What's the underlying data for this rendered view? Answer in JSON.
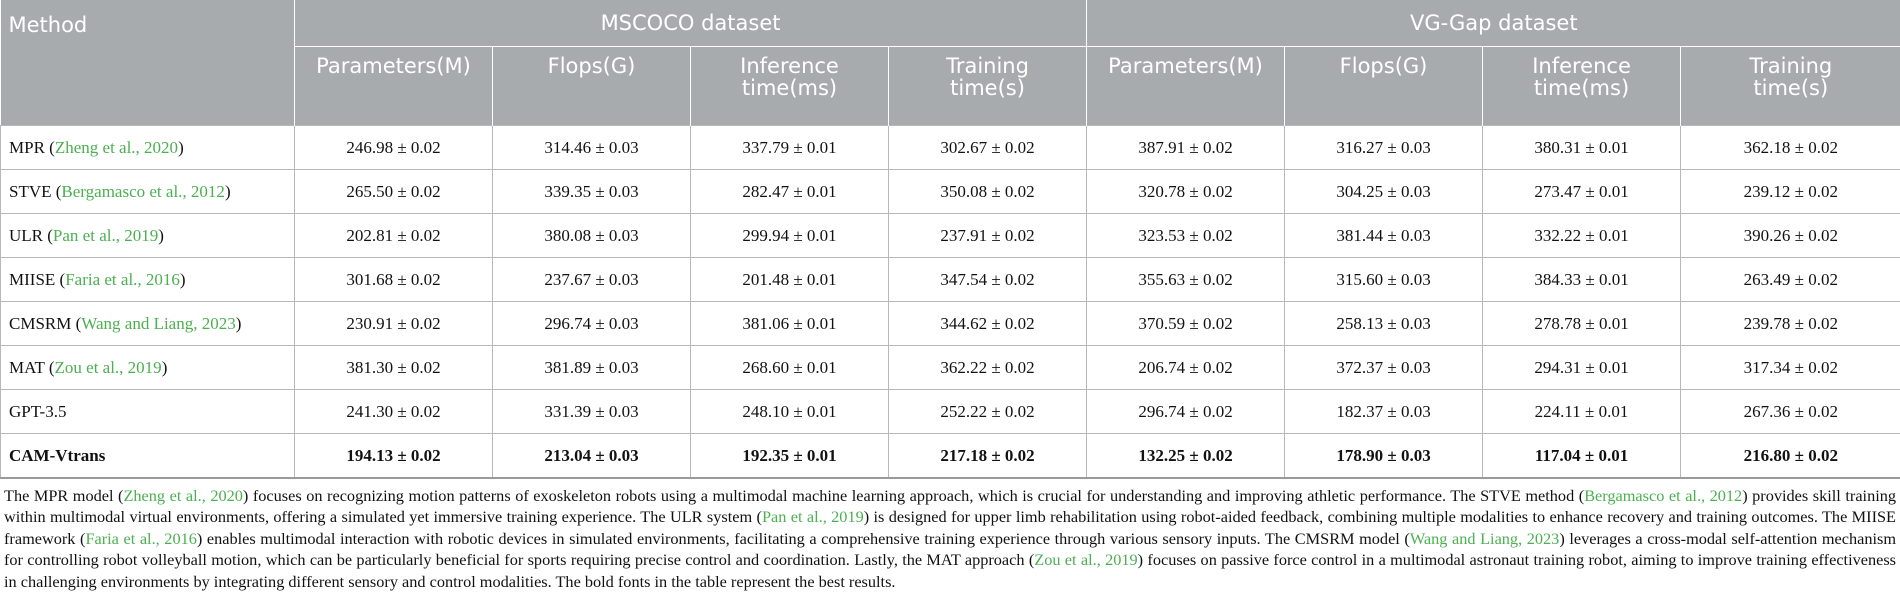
{
  "table": {
    "method_header": "Method",
    "groups": [
      "MSCOCO dataset",
      "VG-Gap dataset"
    ],
    "columns": [
      [
        "Parameters(M)"
      ],
      [
        "Flops(G)"
      ],
      [
        "Inference",
        "time(ms)"
      ],
      [
        "Training",
        "time(s)"
      ],
      [
        "Parameters(M)"
      ],
      [
        "Flops(G)"
      ],
      [
        "Inference",
        "time(ms)"
      ],
      [
        "Training",
        "time(s)"
      ]
    ],
    "rows": [
      {
        "method": "MPR",
        "cite": "Zheng et al., 2020",
        "values": [
          "246.98 ± 0.02",
          "314.46 ± 0.03",
          "337.79 ± 0.01",
          "302.67 ± 0.02",
          "387.91 ± 0.02",
          "316.27 ± 0.03",
          "380.31 ± 0.01",
          "362.18 ± 0.02"
        ]
      },
      {
        "method": "STVE",
        "cite": "Bergamasco et al., 2012",
        "values": [
          "265.50 ± 0.02",
          "339.35 ± 0.03",
          "282.47 ± 0.01",
          "350.08 ± 0.02",
          "320.78 ± 0.02",
          "304.25 ± 0.03",
          "273.47 ± 0.01",
          "239.12 ± 0.02"
        ]
      },
      {
        "method": "ULR",
        "cite": "Pan et al., 2019",
        "values": [
          "202.81 ± 0.02",
          "380.08 ± 0.03",
          "299.94 ± 0.01",
          "237.91 ± 0.02",
          "323.53 ± 0.02",
          "381.44 ± 0.03",
          "332.22 ± 0.01",
          "390.26 ± 0.02"
        ]
      },
      {
        "method": "MIISE",
        "cite": "Faria et al., 2016",
        "values": [
          "301.68 ± 0.02",
          "237.67 ± 0.03",
          "201.48 ± 0.01",
          "347.54 ± 0.02",
          "355.63 ± 0.02",
          "315.60 ± 0.03",
          "384.33 ± 0.01",
          "263.49 ± 0.02"
        ]
      },
      {
        "method": "CMSRM",
        "cite": "Wang and Liang, 2023",
        "values": [
          "230.91 ± 0.02",
          "296.74 ± 0.03",
          "381.06 ± 0.01",
          "344.62 ± 0.02",
          "370.59 ± 0.02",
          "258.13 ± 0.03",
          "278.78 ± 0.01",
          "239.78 ± 0.02"
        ]
      },
      {
        "method": "MAT",
        "cite": "Zou et al., 2019",
        "values": [
          "381.30 ± 0.02",
          "381.89 ± 0.03",
          "268.60 ± 0.01",
          "362.22 ± 0.02",
          "206.74 ± 0.02",
          "372.37 ± 0.03",
          "294.31 ± 0.01",
          "317.34 ± 0.02"
        ]
      },
      {
        "method": "GPT-3.5",
        "cite": "",
        "values": [
          "241.30 ± 0.02",
          "331.39 ± 0.03",
          "248.10 ± 0.01",
          "252.22 ± 0.02",
          "296.74 ± 0.02",
          "182.37 ± 0.03",
          "224.11 ± 0.01",
          "267.36 ± 0.02"
        ]
      },
      {
        "method": "CAM-Vtrans",
        "cite": "",
        "best": true,
        "values": [
          "194.13 ± 0.02",
          "213.04 ± 0.03",
          "192.35 ± 0.01",
          "217.18 ± 0.02",
          "132.25 ± 0.02",
          "178.90 ± 0.03",
          "117.04 ± 0.01",
          "216.80 ± 0.02"
        ]
      }
    ]
  },
  "caption": [
    {
      "t": "The MPR model ("
    },
    {
      "t": "Zheng et al., 2020",
      "cite": true
    },
    {
      "t": ") focuses on recognizing motion patterns of exoskeleton robots using a multimodal machine learning approach, which is crucial for understanding and improving athletic performance. The STVE method ("
    },
    {
      "t": "Bergamasco et al., 2012",
      "cite": true
    },
    {
      "t": ") provides skill training within multimodal virtual environments, offering a simulated yet immersive training experience. The ULR system ("
    },
    {
      "t": "Pan et al., 2019",
      "cite": true
    },
    {
      "t": ") is designed for upper limb rehabilitation using robot-aided feedback, combining multiple modalities to enhance recovery and training outcomes. The MIISE framework ("
    },
    {
      "t": "Faria et al., 2016",
      "cite": true
    },
    {
      "t": ") enables multimodal interaction with robotic devices in simulated environments, facilitating a comprehensive training experience through various sensory inputs. The CMSRM model ("
    },
    {
      "t": "Wang and Liang, 2023",
      "cite": true
    },
    {
      "t": ") leverages a cross-modal self-attention mechanism for controlling robot volleyball motion, which can be particularly beneficial for sports requiring precise control and coordination. Lastly, the MAT approach ("
    },
    {
      "t": "Zou et al., 2019",
      "cite": true
    },
    {
      "t": ") focuses on passive force control in a multimodal astronaut training robot, aiming to improve training effectiveness in challenging environments by integrating different sensory and control modalities. The bold fonts in the table represent the best results."
    }
  ],
  "colors": {
    "header_bg": "#a8abae",
    "citation": "#4caf50",
    "text": "#111111"
  }
}
